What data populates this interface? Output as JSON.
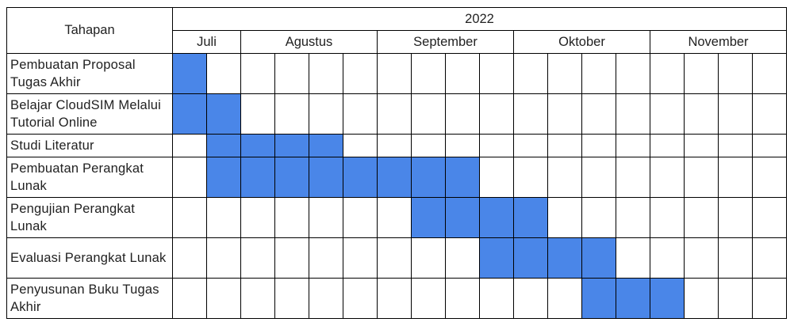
{
  "header": {
    "task_column_label": "Tahapan",
    "year": "2022"
  },
  "months": [
    {
      "label": "Juli",
      "weeks": 2
    },
    {
      "label": "Agustus",
      "weeks": 4
    },
    {
      "label": "September",
      "weeks": 4
    },
    {
      "label": "Oktober",
      "weeks": 4
    },
    {
      "label": "November",
      "weeks": 4
    }
  ],
  "total_weeks": 18,
  "bar_color": "#4a86e8",
  "tasks": [
    {
      "name": "Pembuatan Proposal Tugas Akhir",
      "weeks": [
        1
      ]
    },
    {
      "name": "Belajar CloudSIM Melalui Tutorial Online",
      "weeks": [
        1,
        2
      ]
    },
    {
      "name": "Studi Literatur",
      "weeks": [
        2,
        3,
        4,
        5
      ]
    },
    {
      "name": "Pembuatan Perangkat Lunak",
      "weeks": [
        2,
        3,
        4,
        5,
        6,
        7,
        8,
        9
      ]
    },
    {
      "name": "Pengujian Perangkat Lunak",
      "weeks": [
        8,
        9,
        10,
        11
      ]
    },
    {
      "name": "Evaluasi Perangkat Lunak",
      "weeks": [
        10,
        11,
        12,
        13
      ]
    },
    {
      "name": "Penyusunan Buku Tugas Akhir",
      "weeks": [
        13,
        14,
        15
      ]
    }
  ]
}
